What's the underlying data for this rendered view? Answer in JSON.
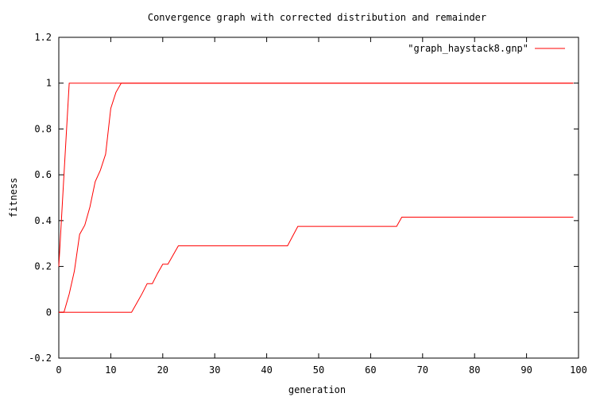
{
  "chart_data": {
    "type": "line",
    "title": "Convergence graph with corrected distribution and remainder",
    "xlabel": "generation",
    "ylabel": "fitness",
    "xlim": [
      0,
      100
    ],
    "ylim": [
      -0.2,
      1.2
    ],
    "xticks": [
      "0",
      "10",
      "20",
      "30",
      "40",
      "50",
      "60",
      "70",
      "80",
      "90",
      "100"
    ],
    "yticks": [
      "-0.2",
      "0",
      "0.2",
      "0.4",
      "0.6",
      "0.8",
      "1",
      "1.2"
    ],
    "grid": false,
    "legend_position": "top-right",
    "line_color": "#ff0000",
    "legend_label": "\"graph_haystack8.gnp\"",
    "series": [
      {
        "points": [
          [
            0,
            0.2
          ],
          [
            1,
            0.6
          ],
          [
            2,
            1.0
          ],
          [
            99,
            1.0
          ]
        ]
      },
      {
        "points": [
          [
            0,
            0.0
          ],
          [
            1,
            0.0
          ],
          [
            2,
            0.08
          ],
          [
            3,
            0.18
          ],
          [
            4,
            0.34
          ],
          [
            5,
            0.38
          ],
          [
            6,
            0.46
          ],
          [
            7,
            0.57
          ],
          [
            8,
            0.62
          ],
          [
            9,
            0.69
          ],
          [
            10,
            0.89
          ],
          [
            11,
            0.96
          ],
          [
            12,
            1.0
          ],
          [
            99,
            1.0
          ]
        ]
      },
      {
        "points": [
          [
            0,
            0.0
          ],
          [
            14,
            0.0
          ],
          [
            16,
            0.08
          ],
          [
            17,
            0.125
          ],
          [
            18,
            0.125
          ],
          [
            19,
            0.17
          ],
          [
            20,
            0.21
          ],
          [
            21,
            0.21
          ],
          [
            23,
            0.29
          ],
          [
            44,
            0.29
          ],
          [
            46,
            0.375
          ],
          [
            65,
            0.375
          ],
          [
            66,
            0.415
          ],
          [
            99,
            0.415
          ]
        ]
      }
    ]
  }
}
